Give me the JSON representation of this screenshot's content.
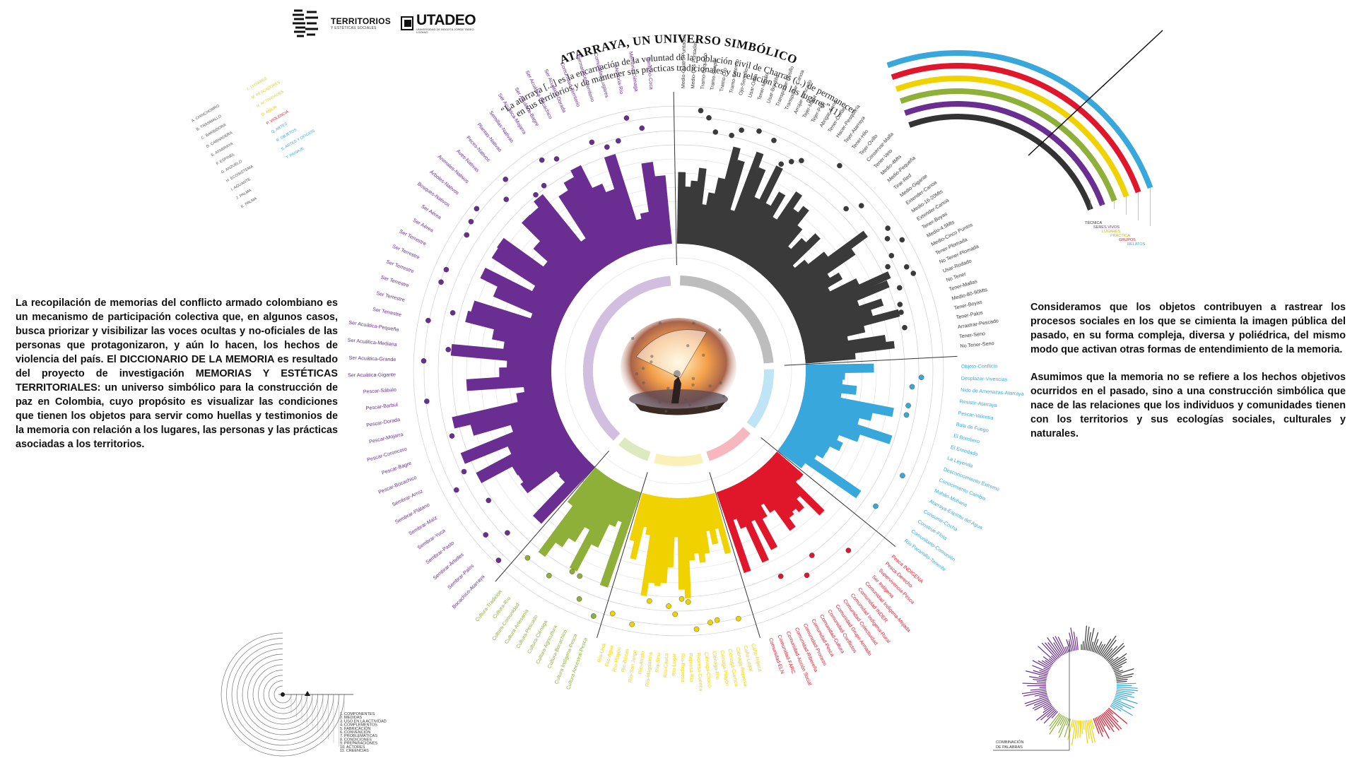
{
  "logos": {
    "territorios_title": "TERRITORIOS",
    "territorios_sub": "Y ESTÉTICAS SOCIALES",
    "utadeo_name": "UTADEO",
    "utadeo_sub": "UNIVERSIDAD DE BOGOTÁ JORGE TADEO LOZANO"
  },
  "poster": {
    "title": "ATARRAYA, UN UNIVERSO SIMBÓLICO",
    "quote_line1": "“La atarraya [...] es la encarnación de la voluntad de la población civil de Charras (...) de permanecer",
    "quote_line2": "en sus territorios y de mantener sus prácticas tradicionales y su relación con los lugares” (1)"
  },
  "intro_text": "La recopilación de memorias del conflicto armado colombiano es un mecanismo de participación colectiva que, en algunos casos, busca priorizar y visibilizar las voces ocultas y no-oficiales de las personas que protagonizaron, y aún lo hacen, los hechos de violencia del país. El DICCIONARIO DE LA MEMORIA es resultado del proyecto de investigación MEMORIAS Y ESTÉTICAS TERRITORIALES: un universo simbólico para la construcción de paz en Colombia, cuyo propósito es visualizar las condiciones que tienen los objetos para servir como huellas y testimonios de la memoria con relación a los lugares, las personas y las prácticas asociadas a los territorios.",
  "right_text": {
    "p1": "Consideramos que los objetos contribuyen a rastrear los procesos sociales en los que se cimienta la imagen pública del pasado, en su forma compleja, diversa y poliédrica, del mismo modo que activan otras formas de entendimiento de la memoria.",
    "p2": "Asumimos que la memoria no se refiere a los hechos objetivos ocurridos en el pasado, sino a una construcción simbólica que nace de las relaciones que los individuos y comunidades tienen con los territorios y sus ecologías sociales, culturales y naturales."
  },
  "colors": {
    "black": "#3a3a3a",
    "purple": "#6a2d91",
    "green": "#8eb038",
    "yellow": "#f0d200",
    "red": "#e0162b",
    "blue": "#38a8dc",
    "grey_ring": "#bdbdbd",
    "purple_ring": "#d2bedf",
    "green_ring": "#dde9bf",
    "yellow_ring": "#f9f1b8",
    "red_ring": "#f6b8be",
    "blue_ring": "#bfe4f5"
  },
  "top_left_legend": {
    "left_col": [
      "A. CHINCHORRO",
      "B. TRASMALLO",
      "C. BARBIDORA",
      "D. CARNADERA",
      "E. ATARRAYA",
      "F. ESPINEL",
      "G. ANZUELO",
      "H. ECOSISTEMA",
      "I. AGUANTE",
      "J. PALMA",
      "K. PALMA"
    ],
    "right_col": [
      "1. LUGARES",
      "M. PESCADORES",
      "N. ACTIVIDADES",
      "O. ASILIA",
      "P. VIOLENCIA",
      "Q. ARTES",
      "R. OBJETOS",
      "S. ARTES Y OFICIOS",
      "T. PAISAJE"
    ]
  },
  "corner_arcs": {
    "labels": [
      "TÉCNICA",
      "SERES VIVOS",
      "LUGARES",
      "PRÁCTICA",
      "GRUPOS",
      "RELATOS"
    ]
  },
  "spiral_legend": {
    "items": [
      "1. COMPONENTES",
      "2. MEDIDAS",
      "3. USO EN LA ACTIVIDAD",
      "4. COMPLEMENTOS",
      "5. FABRICACIÓN",
      "6. CONVENCIÓN",
      "7. PROBLEMÁTICAS",
      "8. CONDICIONES",
      "9. PREPARACIONES",
      "10. ACTORES",
      "11. CREENCIAS"
    ]
  },
  "mini_chart": {
    "label_line1": "COMBINACIÓN",
    "label_line2": "DE PALABRAS"
  },
  "radial": {
    "black_labels": [
      "Medio-Cuatro Puntadas",
      "Medio-Dos Puntadas",
      "Tramo-Pequeño",
      "Tramo-Simple",
      "Tramo-Ojo",
      "Tramo-Extenso",
      "Ojo-Sencillo",
      "Usar-Orilla",
      "Tener-Medio",
      "Usar-Bordillo",
      "Transportar-Posillo",
      "Transportar-Canoa",
      "Arrojar-Pescado",
      "Tejer-Malla",
      "Tejer-Palo",
      "Abrigar-Seno",
      "Tener-Cordel",
      "Hacer-Pesquería",
      "Tejer-Atarraya",
      "Tener-Hilo",
      "Tejer-Ovillo",
      "Conservar-Malla",
      "Tener-Velo",
      "Medio-4Mts",
      "Medio-Pequeña",
      "Tirar-Red",
      "Medio-Gigante",
      "Extender-Canoa",
      "Medio-16-20Mts",
      "Extender-Canoa",
      "Tener-Boyas",
      "Medio-4.5Mts",
      "Medio-Cinco Puntos",
      "Tener-Plomada",
      "No Tener-Plomada",
      "Usar-Rodado",
      "No Tener",
      "Tener-Mallas",
      "Medio-80-90Mts",
      "Tener-Boyas",
      "Tener-Palos",
      "Arrastrar-Pescado",
      "Tener-Seno",
      "No Tener-Seno"
    ],
    "blue_labels": [
      "Objeto-Conflicto",
      "Desplazar-Vivencias",
      "Nido de Amenazas-Atarraya",
      "Resistir-Atarraya",
      "Pescar-Valentía",
      "Bala de Fuego",
      "El Bombero",
      "El Enredado",
      "La Leyenda",
      "Desconocimiento Extremo",
      "Conocimiento Cambio",
      "Mohán-Mohana",
      "Atarraya-Espíritu del Agua",
      "Consumir-Cocha",
      "Construir-Flota",
      "Comunitario-Comunión",
      "Río Paramillo-Tenerife"
    ],
    "red_labels": [
      "Pesca INDIGENA",
      "Pesca-Derecho",
      "Supervivencia-Pesca",
      "Ser Indígena",
      "Comunidad Indígena-Mojada",
      "Comunidad INDER",
      "Comunidad Indígena-Rural",
      "Comunidad Colectividad",
      "Comunidad Grupo Armado",
      "Comunidad-Conflictos",
      "Comunidad-Cultura",
      "Comunidad-Pesca",
      "Comunidad-Proceso",
      "Comunidad-Ribereña",
      "Comunidad-Acción Social",
      "Comunidad-FARC",
      "Comunidad-ELN"
    ],
    "yellow_labels": [
      "Caño-Ribera",
      "Caño-Lugar",
      "Ciénaga-Represa",
      "Ciénaga-Cuenca",
      "Ciénaga-Playón",
      "Ciénaga-Río",
      "Ciénaga-Chocó",
      "Represa-Cuenca",
      "Represa-Río",
      "Río-Represa",
      "Río-Lugar",
      "Río-Cauca",
      "Río-Sinú",
      "Río-Magdalena",
      "Río-Atrato",
      "Río-San Jorge",
      "Río-Bocas",
      "Río-Playón",
      "Río-Agua",
      "Río-Urrá"
    ],
    "green_labels": [
      "Cultura Ancestral-Pesca",
      "Cultura Indígena-Pesca",
      "Cultura-Bocachico",
      "Cultura-Agricultura",
      "Cultura-Ciénaga",
      "Cultura-Pescado",
      "Cultura-Artesanía",
      "Cultura-Comunidad",
      "Cultura-Río",
      "Cultura-Tradición"
    ],
    "purple_labels": [
      "Bocachico-Atarraya",
      "Sembrar-Palos",
      "Sembrar-Árboles",
      "Sembrar-Pasto",
      "Sembrar-Yuca",
      "Sembrar-Maíz",
      "Sembrar-Plátano",
      "Sembrar-Arroz",
      "Pescar-Bocachico",
      "Pescar-Bagre",
      "Pescar-Coroncoro",
      "Pescar-Mojarra",
      "Pescar-Dorada",
      "Pescar-Barbul",
      "Pescar-Sábalo",
      "Ser Acuática-Gigante",
      "Ser Acuática-Grande",
      "Ser Acuática-Mediana",
      "Ser Acuática-Pequeña",
      "Ser Terrestre",
      "Ser Terrestre",
      "Ser Terrestre",
      "Ser Terrestre",
      "Ser Terrestre",
      "Ser Terrestre",
      "Ser Aérea",
      "Ser Aérea",
      "Bosques-Nativos",
      "Árboles-Nativos",
      "Animales-Nativos",
      "Aves-Nativas",
      "Peces-Nativos",
      "Plantas-Nativas",
      "Semillas-Nativas",
      "Ser Acuática-Mojarra",
      "Ser Acuática-Bagre",
      "Ser Acuática-Bocachico",
      "Ser Acuática-Dorada",
      "Comunidad-Territorio",
      "Permanecer-Territorio",
      "Comunidad-Lugares",
      "Memoria-Río",
      "Memoria-Ciénaga",
      "Territorio-Coca"
    ]
  }
}
